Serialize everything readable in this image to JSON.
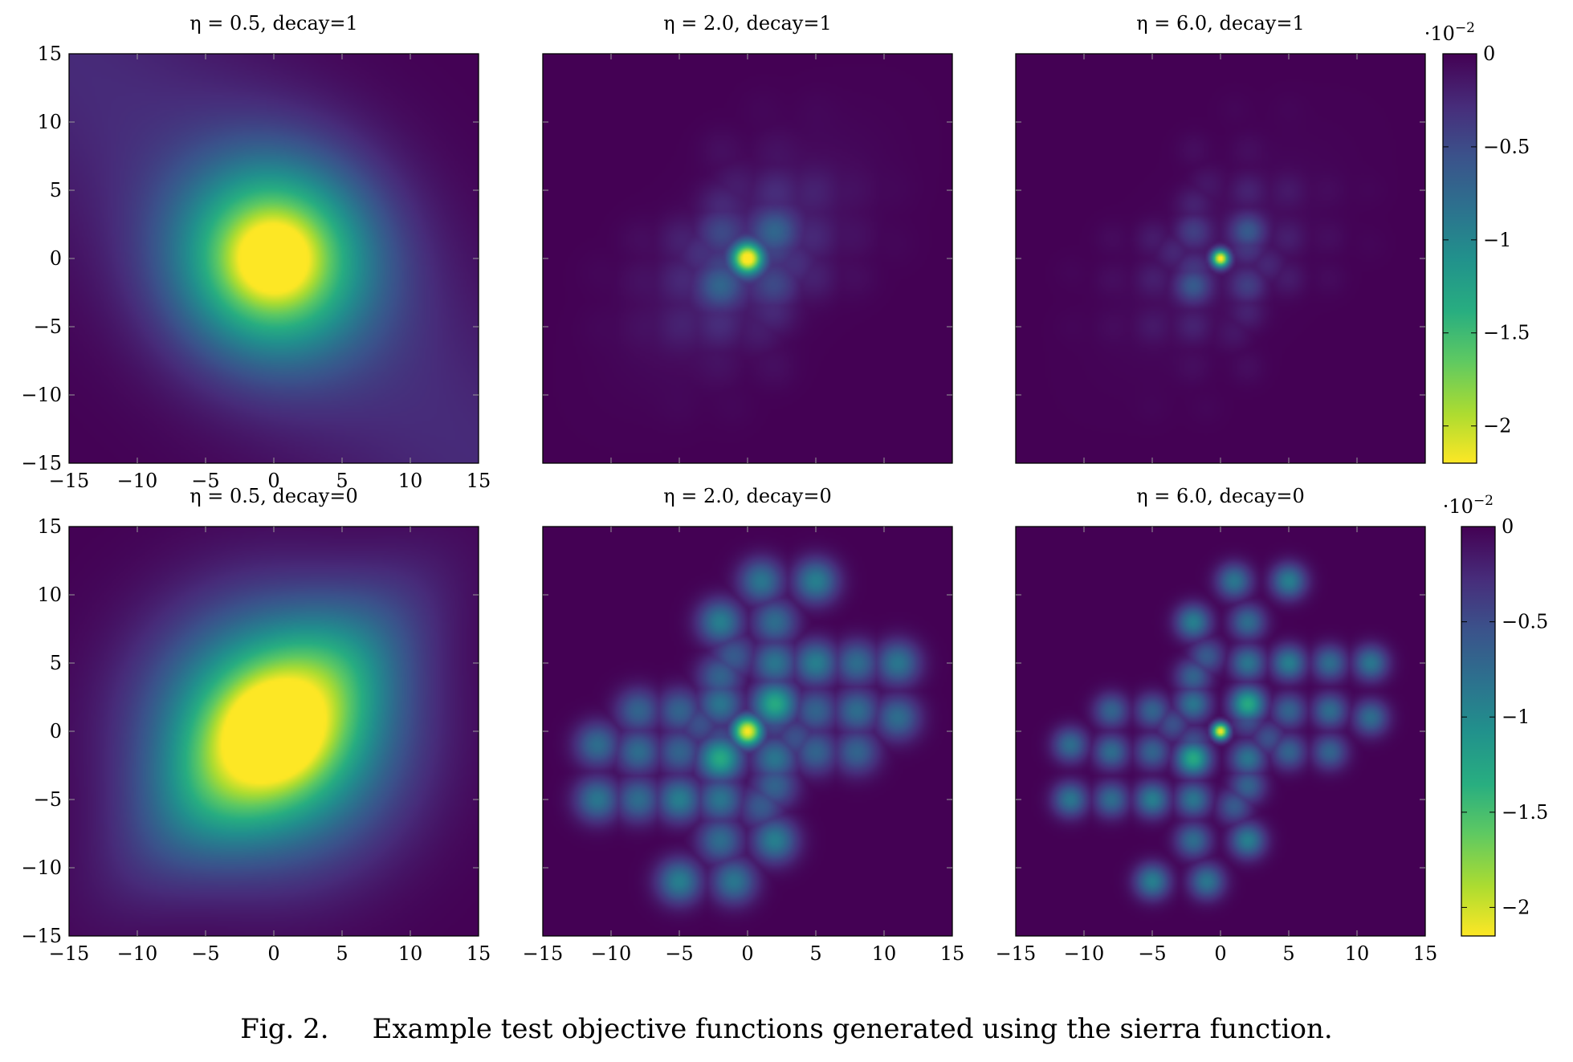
{
  "caption": {
    "label": "Fig. 2.",
    "text": "Example test objective functions generated using the sierra function."
  },
  "chart_data": [
    {
      "type": "heatmap",
      "title": "η = 0.5, decay=1",
      "eta": 0.5,
      "decay": 1,
      "xlim": [
        -15,
        15
      ],
      "ylim": [
        -15,
        15
      ],
      "xticks": [
        "-15",
        "-10",
        "-5",
        "0",
        "5",
        "10",
        "15"
      ],
      "yticks": [
        "-15",
        "-10",
        "-5",
        "0",
        "5",
        "10",
        "15"
      ]
    },
    {
      "type": "heatmap",
      "title": "η = 2.0, decay=1",
      "eta": 2.0,
      "decay": 1,
      "xlim": [
        -15,
        15
      ],
      "ylim": [
        -15,
        15
      ]
    },
    {
      "type": "heatmap",
      "title": "η = 6.0, decay=1",
      "eta": 6.0,
      "decay": 1,
      "xlim": [
        -15,
        15
      ],
      "ylim": [
        -15,
        15
      ],
      "colorbar": {
        "exponent_label": "·10",
        "exponent_power": "−2",
        "range": [
          -2.2,
          0
        ],
        "ticks": [
          0,
          -0.5,
          -1,
          -1.5,
          -2
        ],
        "tick_labels": [
          "0",
          "−0.5",
          "−1",
          "−1.5",
          "−2"
        ],
        "colormap": "viridis reversed (0 dark purple, minimum yellow)"
      }
    },
    {
      "type": "heatmap",
      "title": "η = 0.5, decay=0",
      "eta": 0.5,
      "decay": 0,
      "xlim": [
        -15,
        15
      ],
      "ylim": [
        -15,
        15
      ],
      "xticks": [
        "-15",
        "-10",
        "-5",
        "0",
        "5",
        "10",
        "15"
      ],
      "yticks": [
        "-15",
        "-10",
        "-5",
        "0",
        "5",
        "10",
        "15"
      ]
    },
    {
      "type": "heatmap",
      "title": "η = 2.0, decay=0",
      "eta": 2.0,
      "decay": 0,
      "xlim": [
        -15,
        15
      ],
      "ylim": [
        -15,
        15
      ],
      "xticks": [
        "-15",
        "-10",
        "-5",
        "0",
        "5",
        "10",
        "15"
      ]
    },
    {
      "type": "heatmap",
      "title": "η = 6.0, decay=0",
      "eta": 6.0,
      "decay": 0,
      "xlim": [
        -15,
        15
      ],
      "ylim": [
        -15,
        15
      ],
      "xticks": [
        "-15",
        "-10",
        "-5",
        "0",
        "5",
        "10",
        "15"
      ],
      "colorbar": {
        "exponent_label": "·10",
        "exponent_power": "−2",
        "range": [
          -2.15,
          0
        ],
        "ticks": [
          0,
          -0.5,
          -1,
          -1.5,
          -2
        ],
        "tick_labels": [
          "0",
          "−0.5",
          "−1",
          "−1.5",
          "−2"
        ],
        "colormap": "viridis reversed (0 dark purple, minimum yellow)"
      }
    }
  ]
}
